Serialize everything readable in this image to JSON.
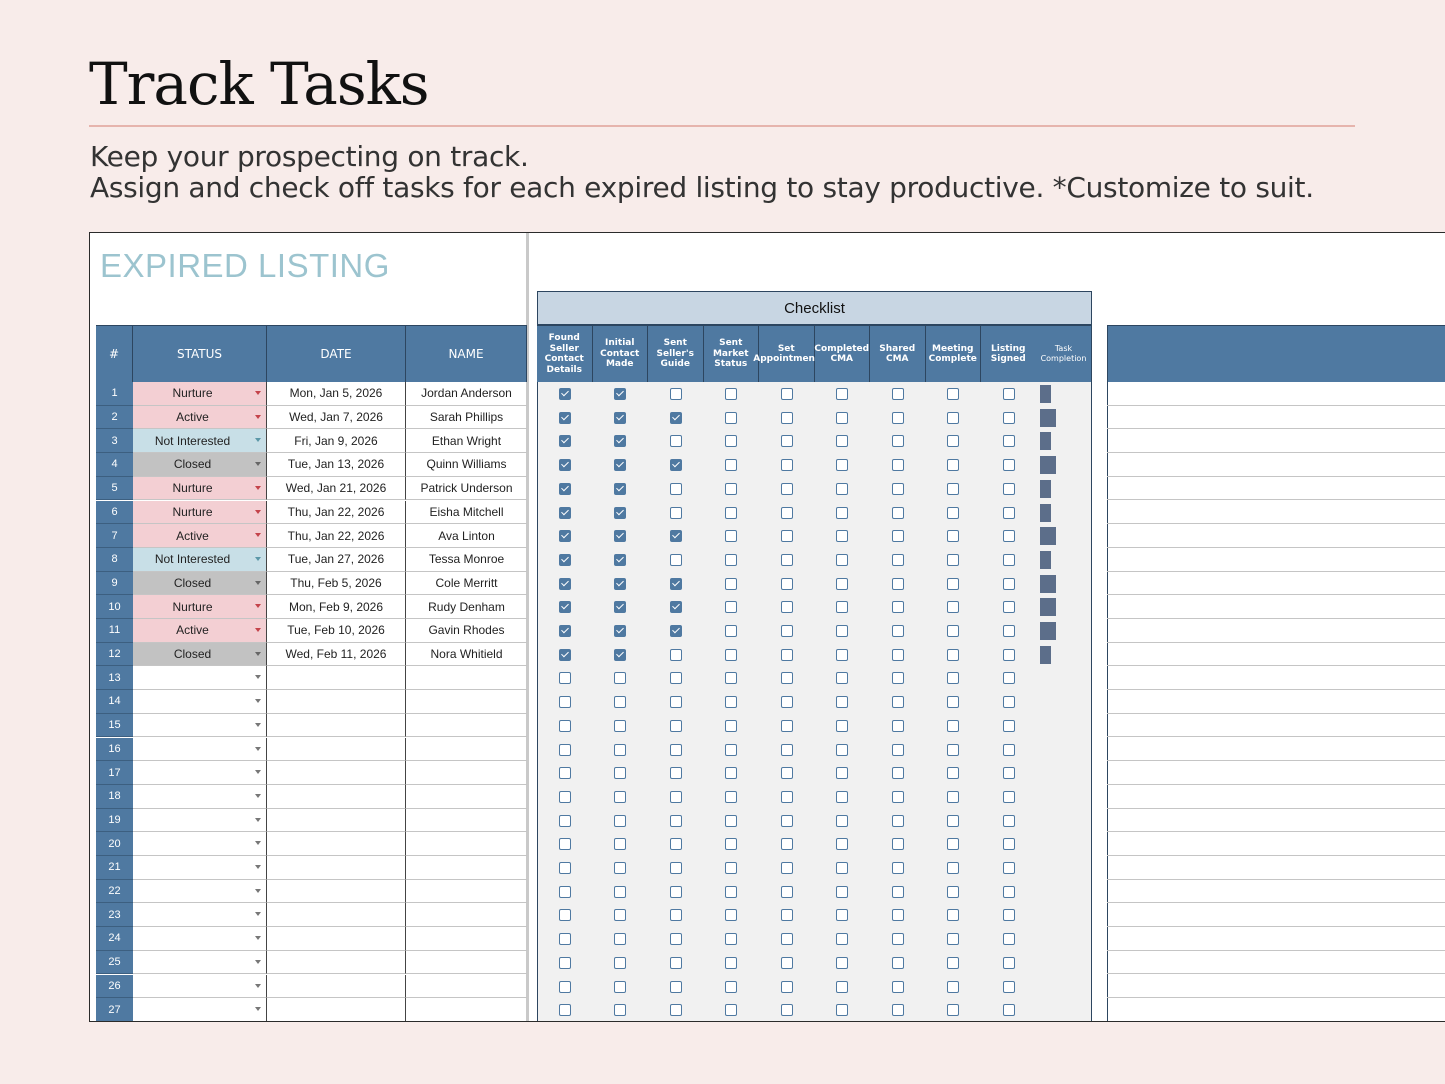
{
  "page": {
    "title": "Track Tasks",
    "subtitle_line1": "Keep your prospecting on track.",
    "subtitle_line2": "Assign and check off tasks for each expired listing to stay productive. *Customize to suit."
  },
  "sheet": {
    "title": "EXPIRED LISTING",
    "checklist_title": "Checklist",
    "columns": {
      "num": "#",
      "status": "STATUS",
      "date": "DATE",
      "name": "NAME"
    },
    "checklist_headers": [
      "Found Seller Contact Details",
      "Initial Contact Made",
      "Sent Seller's Guide",
      "Sent Market Status",
      "Set Appointment",
      "Completed CMA",
      "Shared CMA",
      "Meeting Complete",
      "Listing Signed"
    ],
    "task_completion_header": "Task Completion",
    "colors": {
      "header": "#4f79a1",
      "nurture": "#f3cfd3",
      "not_interested": "#c8dfe7",
      "closed": "#c2c2c2",
      "bar": "#5c6e8a"
    },
    "rows": [
      {
        "n": "1",
        "status": "Nurture",
        "date": "Mon, Jan 5, 2026",
        "name": "Jordan Anderson",
        "checks": [
          1,
          1,
          0,
          0,
          0,
          0,
          0,
          0,
          0
        ]
      },
      {
        "n": "2",
        "status": "Active",
        "date": "Wed, Jan 7, 2026",
        "name": "Sarah Phillips",
        "checks": [
          1,
          1,
          1,
          0,
          0,
          0,
          0,
          0,
          0
        ]
      },
      {
        "n": "3",
        "status": "Not Interested",
        "date": "Fri, Jan 9, 2026",
        "name": "Ethan Wright",
        "checks": [
          1,
          1,
          0,
          0,
          0,
          0,
          0,
          0,
          0
        ]
      },
      {
        "n": "4",
        "status": "Closed",
        "date": "Tue, Jan 13, 2026",
        "name": "Quinn Williams",
        "checks": [
          1,
          1,
          1,
          0,
          0,
          0,
          0,
          0,
          0
        ]
      },
      {
        "n": "5",
        "status": "Nurture",
        "date": "Wed, Jan 21, 2026",
        "name": "Patrick Underson",
        "checks": [
          1,
          1,
          0,
          0,
          0,
          0,
          0,
          0,
          0
        ]
      },
      {
        "n": "6",
        "status": "Nurture",
        "date": "Thu, Jan 22, 2026",
        "name": "Eisha Mitchell",
        "checks": [
          1,
          1,
          0,
          0,
          0,
          0,
          0,
          0,
          0
        ]
      },
      {
        "n": "7",
        "status": "Active",
        "date": "Thu, Jan 22, 2026",
        "name": "Ava Linton",
        "checks": [
          1,
          1,
          1,
          0,
          0,
          0,
          0,
          0,
          0
        ]
      },
      {
        "n": "8",
        "status": "Not Interested",
        "date": "Tue, Jan 27, 2026",
        "name": "Tessa Monroe",
        "checks": [
          1,
          1,
          0,
          0,
          0,
          0,
          0,
          0,
          0
        ]
      },
      {
        "n": "9",
        "status": "Closed",
        "date": "Thu, Feb 5, 2026",
        "name": "Cole Merritt",
        "checks": [
          1,
          1,
          1,
          0,
          0,
          0,
          0,
          0,
          0
        ]
      },
      {
        "n": "10",
        "status": "Nurture",
        "date": "Mon, Feb 9, 2026",
        "name": "Rudy Denham",
        "checks": [
          1,
          1,
          1,
          0,
          0,
          0,
          0,
          0,
          0
        ]
      },
      {
        "n": "11",
        "status": "Active",
        "date": "Tue, Feb 10, 2026",
        "name": "Gavin Rhodes",
        "checks": [
          1,
          1,
          1,
          0,
          0,
          0,
          0,
          0,
          0
        ]
      },
      {
        "n": "12",
        "status": "Closed",
        "date": "Wed, Feb 11, 2026",
        "name": "Nora Whitield",
        "checks": [
          1,
          1,
          0,
          0,
          0,
          0,
          0,
          0,
          0
        ]
      },
      {
        "n": "13",
        "status": "",
        "date": "",
        "name": "",
        "checks": [
          0,
          0,
          0,
          0,
          0,
          0,
          0,
          0,
          0
        ]
      },
      {
        "n": "14",
        "status": "",
        "date": "",
        "name": "",
        "checks": [
          0,
          0,
          0,
          0,
          0,
          0,
          0,
          0,
          0
        ]
      },
      {
        "n": "15",
        "status": "",
        "date": "",
        "name": "",
        "checks": [
          0,
          0,
          0,
          0,
          0,
          0,
          0,
          0,
          0
        ]
      },
      {
        "n": "16",
        "status": "",
        "date": "",
        "name": "",
        "checks": [
          0,
          0,
          0,
          0,
          0,
          0,
          0,
          0,
          0
        ]
      },
      {
        "n": "17",
        "status": "",
        "date": "",
        "name": "",
        "checks": [
          0,
          0,
          0,
          0,
          0,
          0,
          0,
          0,
          0
        ]
      },
      {
        "n": "18",
        "status": "",
        "date": "",
        "name": "",
        "checks": [
          0,
          0,
          0,
          0,
          0,
          0,
          0,
          0,
          0
        ]
      },
      {
        "n": "19",
        "status": "",
        "date": "",
        "name": "",
        "checks": [
          0,
          0,
          0,
          0,
          0,
          0,
          0,
          0,
          0
        ]
      },
      {
        "n": "20",
        "status": "",
        "date": "",
        "name": "",
        "checks": [
          0,
          0,
          0,
          0,
          0,
          0,
          0,
          0,
          0
        ]
      },
      {
        "n": "21",
        "status": "",
        "date": "",
        "name": "",
        "checks": [
          0,
          0,
          0,
          0,
          0,
          0,
          0,
          0,
          0
        ]
      },
      {
        "n": "22",
        "status": "",
        "date": "",
        "name": "",
        "checks": [
          0,
          0,
          0,
          0,
          0,
          0,
          0,
          0,
          0
        ]
      },
      {
        "n": "23",
        "status": "",
        "date": "",
        "name": "",
        "checks": [
          0,
          0,
          0,
          0,
          0,
          0,
          0,
          0,
          0
        ]
      },
      {
        "n": "24",
        "status": "",
        "date": "",
        "name": "",
        "checks": [
          0,
          0,
          0,
          0,
          0,
          0,
          0,
          0,
          0
        ]
      },
      {
        "n": "25",
        "status": "",
        "date": "",
        "name": "",
        "checks": [
          0,
          0,
          0,
          0,
          0,
          0,
          0,
          0,
          0
        ]
      },
      {
        "n": "26",
        "status": "",
        "date": "",
        "name": "",
        "checks": [
          0,
          0,
          0,
          0,
          0,
          0,
          0,
          0,
          0
        ]
      },
      {
        "n": "27",
        "status": "",
        "date": "",
        "name": "",
        "checks": [
          0,
          0,
          0,
          0,
          0,
          0,
          0,
          0,
          0
        ]
      }
    ]
  }
}
